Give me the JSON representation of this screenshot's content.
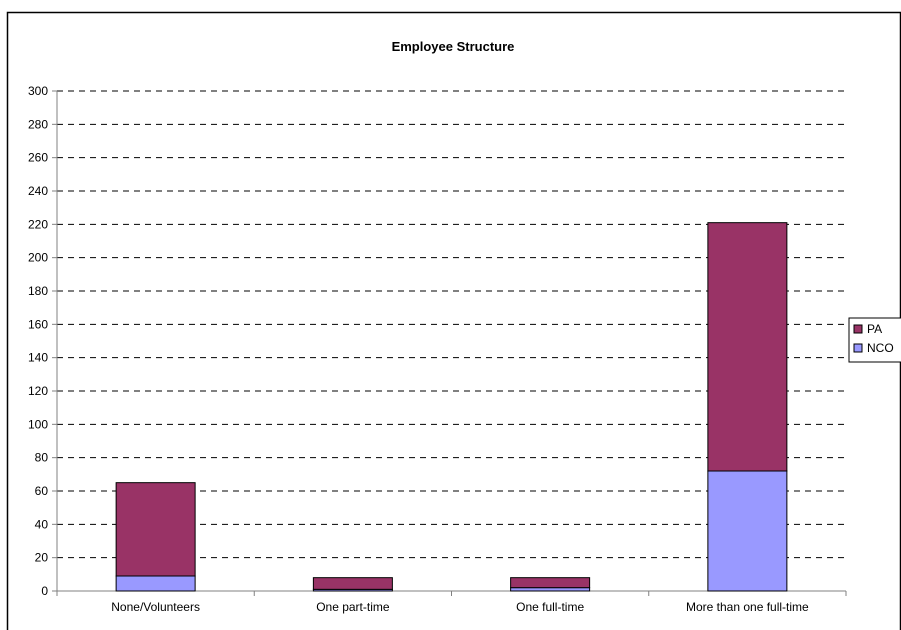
{
  "chart_data": {
    "type": "bar",
    "stacked": true,
    "title": "Employee Structure",
    "xlabel": "",
    "ylabel": "",
    "categories": [
      "None/Volunteers",
      "One part-time",
      "One full-time",
      "More than one full-time"
    ],
    "series": [
      {
        "name": "NCO",
        "values": [
          9,
          1,
          2,
          72
        ],
        "color": "#9999ff"
      },
      {
        "name": "PA",
        "values": [
          56,
          7,
          6,
          149
        ],
        "color": "#993366"
      }
    ],
    "ylim": [
      0,
      300
    ],
    "yticks": [
      0,
      20,
      40,
      60,
      80,
      100,
      120,
      140,
      160,
      180,
      200,
      220,
      240,
      260,
      280,
      300
    ],
    "grid": true,
    "grid_style": "dashed",
    "legend_position": "right",
    "legend_order": [
      "PA",
      "NCO"
    ],
    "colors": {
      "plot_background": "#ffffff",
      "axis": "#808080",
      "gridline": "#000000",
      "bar_outline": "#000000",
      "frame": "#000000"
    }
  }
}
